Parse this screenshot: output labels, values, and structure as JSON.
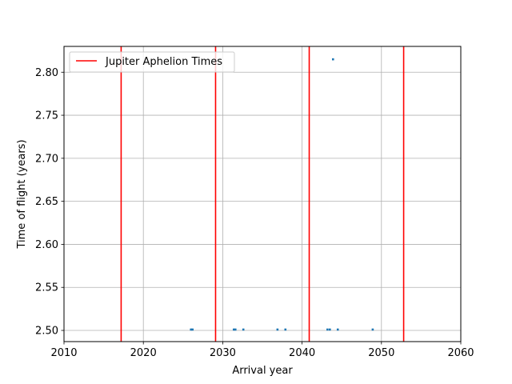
{
  "chart_data": {
    "type": "scatter",
    "title": "",
    "xlabel": "Arrival year",
    "ylabel": "Time of flight (years)",
    "xlim": [
      2010,
      2060
    ],
    "ylim": [
      2.487,
      2.83
    ],
    "xticks": [
      2010,
      2020,
      2030,
      2040,
      2050,
      2060
    ],
    "yticks": [
      2.5,
      2.55,
      2.6,
      2.65,
      2.7,
      2.75,
      2.8
    ],
    "ytick_labels": [
      "2.50",
      "2.55",
      "2.60",
      "2.65",
      "2.70",
      "2.75",
      "2.80"
    ],
    "grid": true,
    "legend": {
      "placement": "top-left",
      "entries": [
        "Jupiter Aphelion Times"
      ]
    },
    "vertical_lines": {
      "name": "Jupiter Aphelion Times",
      "color": "#ff0000",
      "x": [
        2017.2,
        2029.1,
        2040.9,
        2052.8
      ]
    },
    "series": [
      {
        "color": "#1f77b4",
        "points": [
          {
            "x": 2026.0,
            "y": 2.501
          },
          {
            "x": 2026.2,
            "y": 2.501
          },
          {
            "x": 2031.4,
            "y": 2.501
          },
          {
            "x": 2031.6,
            "y": 2.501
          },
          {
            "x": 2032.6,
            "y": 2.501
          },
          {
            "x": 2036.9,
            "y": 2.501
          },
          {
            "x": 2037.9,
            "y": 2.501
          },
          {
            "x": 2043.2,
            "y": 2.501
          },
          {
            "x": 2043.5,
            "y": 2.501
          },
          {
            "x": 2044.5,
            "y": 2.501
          },
          {
            "x": 2048.9,
            "y": 2.501
          },
          {
            "x": 2043.9,
            "y": 2.815
          }
        ]
      }
    ]
  }
}
